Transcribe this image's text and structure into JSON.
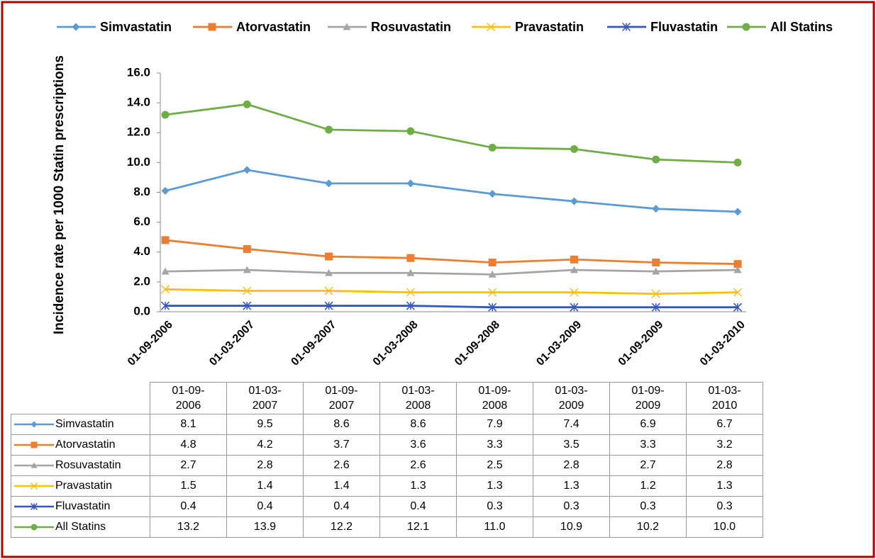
{
  "chart_data": {
    "type": "line",
    "y_label": "Incidence rate per 1000  Statin prescriptions",
    "categories": [
      "01-09-2006",
      "01-03-2007",
      "01-09-2007",
      "01-03-2008",
      "01-09-2008",
      "01-03-2009",
      "01-09-2009",
      "01-03-2010"
    ],
    "series": [
      {
        "name": "Simvastatin",
        "color": "#5b9bd5",
        "values": [
          8.1,
          9.5,
          8.6,
          8.6,
          7.9,
          7.4,
          6.9,
          6.7
        ]
      },
      {
        "name": "Atorvastatin",
        "color": "#ed7d31",
        "values": [
          4.8,
          4.2,
          3.7,
          3.6,
          3.3,
          3.5,
          3.3,
          3.2
        ]
      },
      {
        "name": "Rosuvastatin",
        "color": "#a5a5a5",
        "values": [
          2.7,
          2.8,
          2.6,
          2.6,
          2.5,
          2.8,
          2.7,
          2.8
        ]
      },
      {
        "name": "Pravastatin",
        "color": "#ffc000",
        "values": [
          1.5,
          1.4,
          1.4,
          1.3,
          1.3,
          1.3,
          1.2,
          1.3
        ]
      },
      {
        "name": "Fluvastatin",
        "color": "#3558c0",
        "values": [
          0.4,
          0.4,
          0.4,
          0.4,
          0.3,
          0.3,
          0.3,
          0.3
        ]
      },
      {
        "name": "All Statins",
        "color": "#70ad47",
        "values": [
          13.2,
          13.9,
          12.2,
          12.1,
          11,
          10.9,
          10.2,
          10
        ],
        "value_labels": [
          "13.2",
          "13.9",
          "12.2",
          "12.1",
          "11.0",
          "10.9",
          "10.2",
          "10.0"
        ]
      }
    ],
    "ylim": [
      0,
      16
    ],
    "yticks": [
      {
        "value": 0,
        "label": "0.0"
      },
      {
        "value": 2,
        "label": "2.0"
      },
      {
        "value": 4,
        "label": "4.0"
      },
      {
        "value": 6,
        "label": "6.0"
      },
      {
        "value": 8,
        "label": "8.0"
      },
      {
        "value": 10,
        "label": "10.0"
      },
      {
        "value": 12,
        "label": "12.0"
      },
      {
        "value": 14,
        "label": "14.0"
      },
      {
        "value": 16,
        "label": "16.0"
      }
    ],
    "legend": "top",
    "grid": false
  }
}
